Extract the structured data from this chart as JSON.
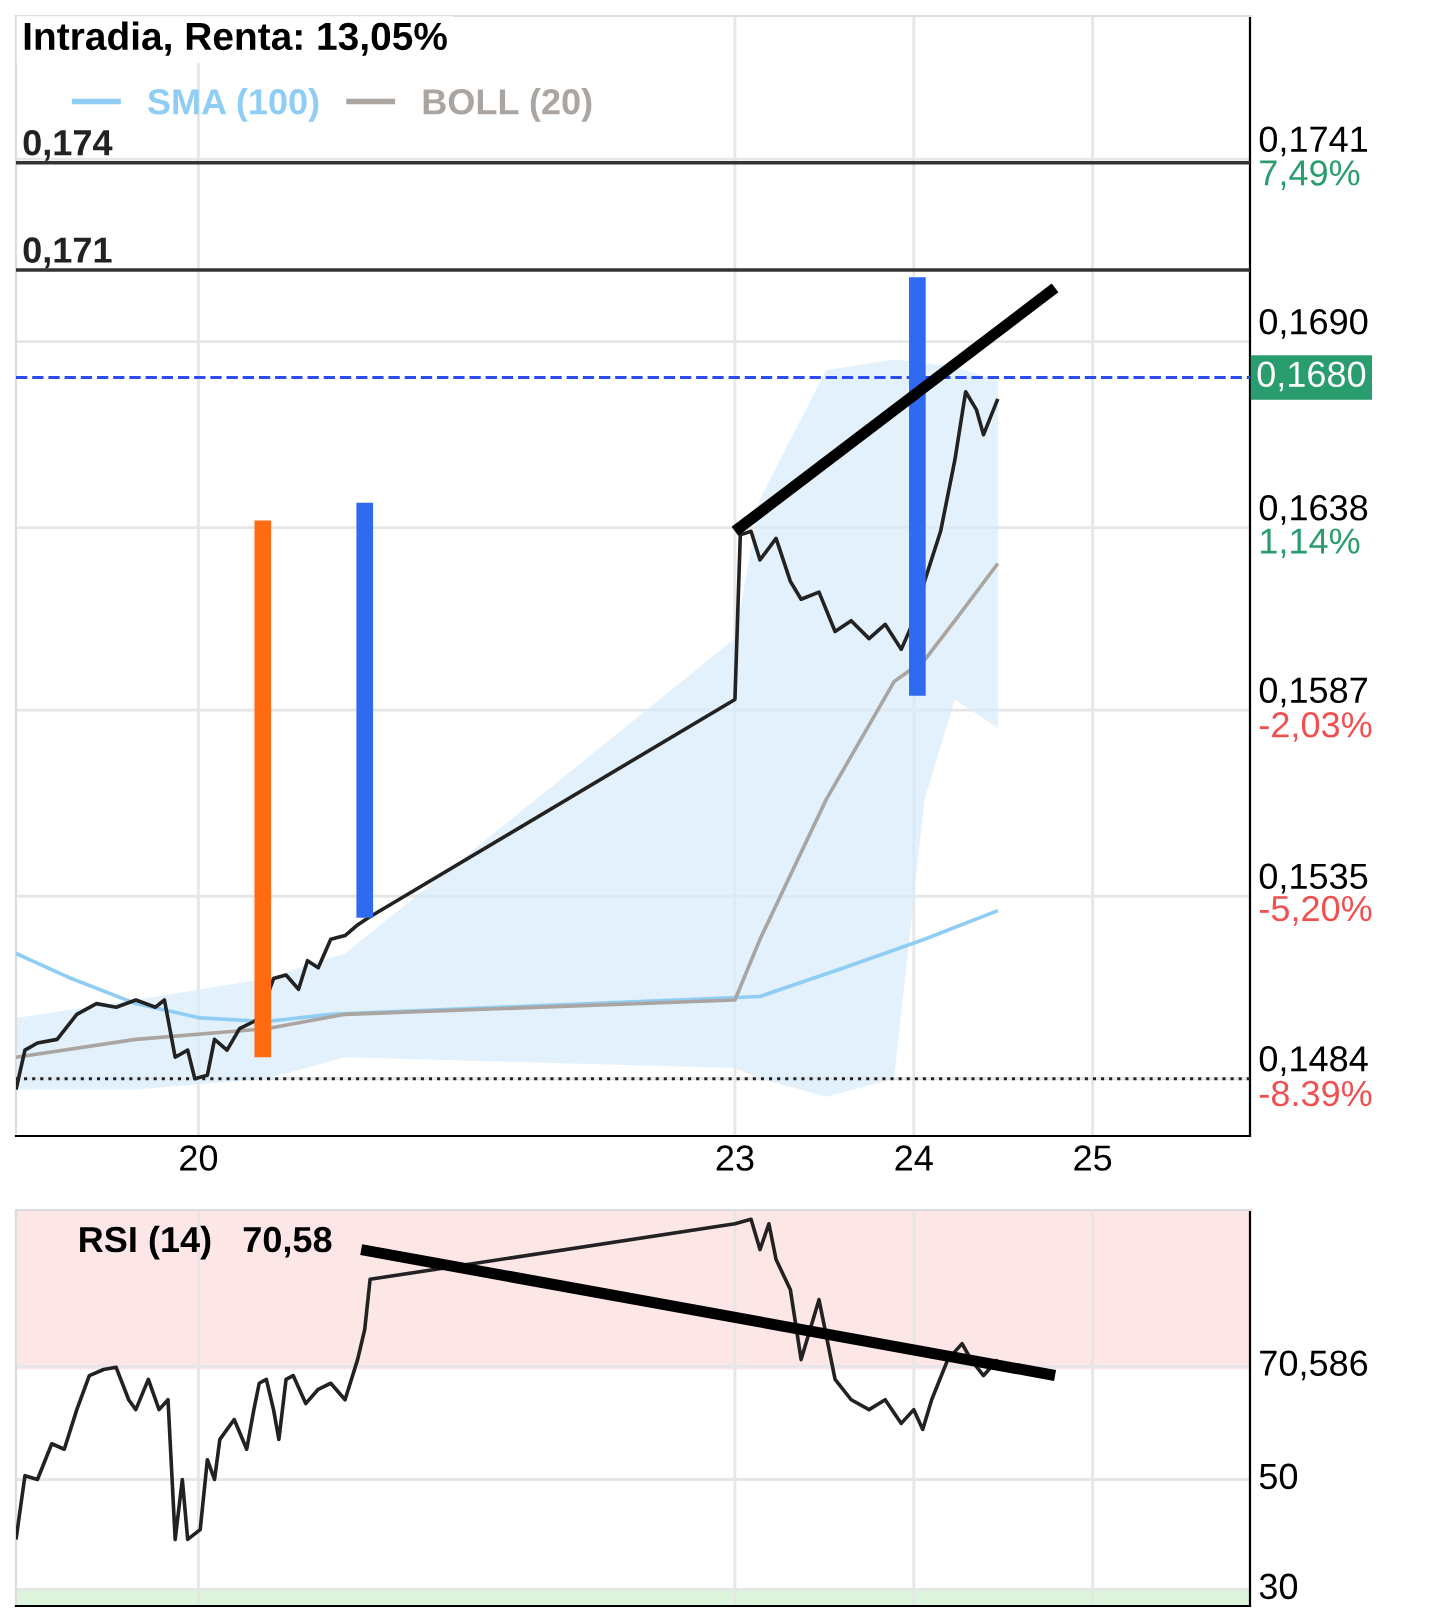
{
  "chart_data": [
    {
      "type": "line",
      "title": "Intradia, Renta: 13,05%",
      "legend": "top left",
      "grid": true,
      "xlim": [
        18.98,
        25.88
      ],
      "xticks": [
        20,
        23,
        24,
        25
      ],
      "ylim": [
        0.1468,
        0.1781
      ],
      "yticks": [
        {
          "value": 0.1484,
          "label": "0,1484"
        },
        {
          "value": 0.1535,
          "label": "0,1535"
        },
        {
          "value": 0.1587,
          "label": "0,1587"
        },
        {
          "value": 0.1638,
          "label": "0,1638"
        },
        {
          "value": 0.169,
          "label": "0,1690"
        },
        {
          "value": 0.1741,
          "label": "0,1741"
        }
      ],
      "y2lim": [
        -9.36,
        9.96
      ],
      "y2ticks": [
        {
          "value": -8.39,
          "label": "-8.39%"
        },
        {
          "value": -5.2,
          "label": "-5,20%"
        },
        {
          "value": -2.03,
          "label": "-2,03%"
        },
        {
          "value": 1.14,
          "label": "1,14%"
        },
        {
          "value": 7.49,
          "label": "7,49%"
        }
      ],
      "ref_lines": [
        {
          "axis": "y",
          "value": 0.174,
          "label": "0,174",
          "color": "#333333",
          "line_style": "solid"
        },
        {
          "axis": "y",
          "value": 0.171,
          "label": "0,171",
          "color": "#333333",
          "line_style": "solid"
        },
        {
          "axis": "y",
          "value": 0.168,
          "label": "0,1680",
          "color": "#2a4cf0",
          "line_style": "dashed"
        },
        {
          "axis": "y",
          "value": 0.1484,
          "color": "#222222",
          "line_style": "dotted"
        }
      ],
      "series": [
        {
          "name": "SMA (100)",
          "color": "#8fcdf5",
          "x": [
            18.98,
            19.29,
            19.65,
            20.01,
            20.38,
            20.74,
            23.14,
            23.61,
            24.06,
            24.47
          ],
          "values": [
            0.1519,
            0.1512,
            0.1505,
            0.1501,
            0.15,
            0.1502,
            0.1507,
            0.1515,
            0.1523,
            0.1531
          ]
        },
        {
          "name": "BOLL (20)",
          "color": "#aaa5a0",
          "x": [
            18.98,
            19.65,
            20.38,
            20.82,
            23.0,
            23.14,
            23.51,
            23.89,
            24.06,
            24.23,
            24.47
          ],
          "values": [
            0.149,
            0.1495,
            0.1498,
            0.1502,
            0.1506,
            0.1523,
            0.1562,
            0.1595,
            0.1601,
            0.1612,
            0.1628
          ],
          "lower": [
            0.1481,
            0.1481,
            0.1484,
            0.149,
            0.1487,
            0.1484,
            0.1479,
            0.1484,
            0.1562,
            0.159,
            0.1582
          ],
          "upper": [
            0.1501,
            0.1506,
            0.1512,
            0.1519,
            0.1607,
            0.1646,
            0.1682,
            0.1685,
            0.1684,
            0.1683,
            0.1679
          ]
        },
        {
          "color": "#222222",
          "x": [
            18.98,
            19.03,
            19.1,
            19.21,
            19.32,
            19.43,
            19.54,
            19.65,
            19.76,
            19.81,
            19.87,
            19.94,
            19.98,
            20.05,
            20.09,
            20.16,
            20.23,
            20.31,
            20.34,
            20.42,
            20.49,
            20.56,
            20.61,
            20.67,
            20.74,
            20.82,
            20.89,
            20.95,
            23.0,
            23.03,
            23.09,
            23.14,
            23.23,
            23.31,
            23.37,
            23.47,
            23.56,
            23.65,
            23.75,
            23.84,
            23.93,
            24.0,
            24.06,
            24.15,
            24.23,
            24.29,
            24.35,
            24.39,
            24.47
          ],
          "values": [
            0.1481,
            0.1492,
            0.1494,
            0.1495,
            0.1502,
            0.1505,
            0.1504,
            0.1506,
            0.1504,
            0.1506,
            0.149,
            0.1492,
            0.1484,
            0.1485,
            0.1495,
            0.1492,
            0.1498,
            0.15,
            0.1501,
            0.1512,
            0.1513,
            0.1509,
            0.1517,
            0.1515,
            0.1523,
            0.1524,
            0.1527,
            0.1529,
            0.159,
            0.1636,
            0.1637,
            0.1629,
            0.1635,
            0.1623,
            0.1618,
            0.162,
            0.1609,
            0.1612,
            0.1607,
            0.1611,
            0.1604,
            0.1612,
            0.1623,
            0.1637,
            0.1657,
            0.1676,
            0.1671,
            0.1664,
            0.1674
          ]
        },
        {
          "color": "#ff6a13",
          "x": [
            20.36,
            20.36
          ],
          "values": [
            0.164,
            0.149
          ]
        },
        {
          "color": "#2e6bf0",
          "x": [
            20.93,
            20.93
          ],
          "values": [
            0.1645,
            0.1529
          ]
        },
        {
          "color": "#2e6bf0",
          "x": [
            24.02,
            24.02
          ],
          "values": [
            0.1708,
            0.1591
          ]
        },
        {
          "color": "#000000",
          "x": [
            23.0,
            24.79
          ],
          "values": [
            0.1637,
            0.1705
          ]
        }
      ]
    },
    {
      "type": "line",
      "title": "RSI (14)   70,58",
      "grid": true,
      "tick_labels": "y",
      "xlim": [
        18.98,
        25.88
      ],
      "xticks": [
        20,
        23,
        24,
        25
      ],
      "ylim": [
        27,
        99
      ],
      "yticks": [
        30,
        50,
        {
          "value": 70.586,
          "label": "70,586"
        }
      ],
      "bands": [
        {
          "axis": "y",
          "from": 70,
          "to": 99,
          "color": "#fde6e6"
        },
        {
          "axis": "y",
          "from": 27,
          "to": 30,
          "color": "#dcf5dc"
        }
      ],
      "series": [
        {
          "color": "#222222",
          "x": [
            18.98,
            19.03,
            19.1,
            19.18,
            19.25,
            19.32,
            19.39,
            19.47,
            19.54,
            19.61,
            19.65,
            19.72,
            19.78,
            19.83,
            19.87,
            19.91,
            19.94,
            20.01,
            20.05,
            20.09,
            20.12,
            20.2,
            20.27,
            20.31,
            20.34,
            20.38,
            20.42,
            20.45,
            20.49,
            20.53,
            20.6,
            20.67,
            20.74,
            20.82,
            20.89,
            20.93,
            20.96,
            23.0,
            23.09,
            23.14,
            23.19,
            23.23,
            23.31,
            23.37,
            23.47,
            23.56,
            23.65,
            23.75,
            23.84,
            23.93,
            24.0,
            24.05,
            24.1,
            24.19,
            24.27,
            24.32,
            24.39,
            24.47
          ],
          "values": [
            39.1,
            50.7,
            50,
            56.5,
            55.5,
            62.7,
            68.9,
            70,
            70.4,
            64.5,
            62.7,
            68.2,
            62.7,
            64.5,
            39.1,
            50,
            39.1,
            40.9,
            53.6,
            50,
            57.3,
            60.9,
            55.5,
            62.7,
            67.5,
            68.2,
            62.7,
            57.3,
            68.2,
            68.9,
            63.8,
            66.4,
            67.5,
            64.5,
            71.8,
            77.3,
            86.4,
            96.5,
            97.3,
            91.8,
            96.5,
            90,
            84.5,
            71.8,
            82.7,
            68.2,
            64.5,
            62.7,
            64.5,
            60.2,
            62.7,
            59.1,
            64.5,
            71.8,
            74.7,
            71.8,
            68.9,
            71.8
          ]
        },
        {
          "color": "#000000",
          "x": [
            20.91,
            24.79
          ],
          "values": [
            91.8,
            68.9
          ]
        }
      ]
    }
  ]
}
